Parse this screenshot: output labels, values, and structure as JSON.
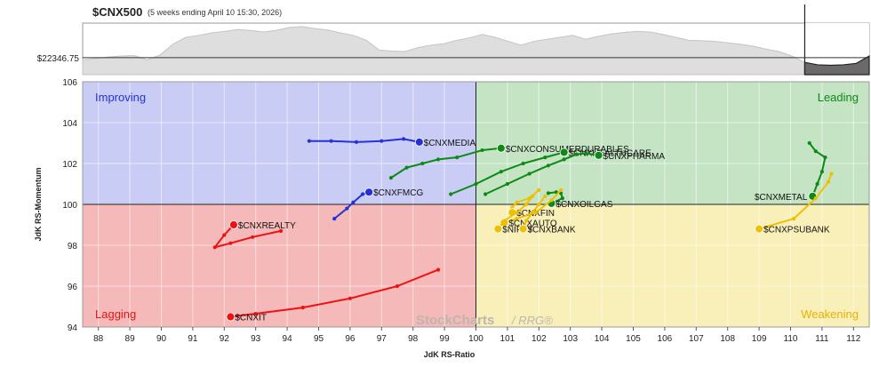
{
  "header": {
    "symbol": "$CNX500",
    "subtitle": "(5 weeks ending April 10 15:30, 2026)",
    "price_label": "$22346.75"
  },
  "watermark": {
    "brand": "StockCharts",
    "tool": "/ RRG®"
  },
  "colors": {
    "improving": "#c9cdf5",
    "leading": "#c4e4c4",
    "lagging": "#f6b9b9",
    "weakening": "#f8f0b8",
    "blue": "#2432d6",
    "green": "#0d8a16",
    "red": "#ee1111",
    "yellow": "#f0c000"
  },
  "chart_data": [
    {
      "type": "area",
      "series": [
        {
          "name": "$CNX500",
          "values": [
            22300,
            22330,
            22360,
            22380,
            22390,
            22300,
            22400,
            22620,
            22760,
            22800,
            22850,
            22880,
            22920,
            22900,
            22870,
            22900,
            22960,
            22980,
            22940,
            22910,
            22850,
            22800,
            22700,
            22500,
            22480,
            22470,
            22550,
            22600,
            22630,
            22700,
            22750,
            22820,
            22760,
            22680,
            22600,
            22680,
            22720,
            22760,
            22800,
            22720,
            22780,
            22830,
            22860,
            22880,
            22870,
            22820,
            22760,
            22700,
            22690,
            22680,
            22650,
            22620,
            22580,
            22520,
            22470,
            22380,
            22250,
            22200,
            22190,
            22200,
            22230,
            22380
          ]
        }
      ],
      "reference_value": 22346.75,
      "highlight_last": 5
    },
    {
      "type": "scatter",
      "title": "",
      "xlabel": "JdK RS-Ratio",
      "ylabel": "JdK RS-Momentum",
      "xlim": [
        87.5,
        112.5
      ],
      "ylim": [
        94,
        106
      ],
      "xticks": [
        88,
        89,
        90,
        91,
        92,
        93,
        94,
        95,
        96,
        97,
        98,
        99,
        100,
        101,
        102,
        103,
        104,
        105,
        106,
        107,
        108,
        109,
        110,
        111,
        112
      ],
      "yticks": [
        94,
        96,
        98,
        100,
        102,
        104,
        106
      ],
      "quadrants": {
        "top_left": "Improving",
        "top_right": "Leading",
        "bottom_left": "Lagging",
        "bottom_right": "Weakening"
      },
      "grid": true,
      "series": [
        {
          "name": "$CNXMEDIA",
          "color": "blue",
          "label_pos": "right",
          "points": [
            [
              94.7,
              103.1
            ],
            [
              95.4,
              103.1
            ],
            [
              96.2,
              103.05
            ],
            [
              97.0,
              103.1
            ],
            [
              97.7,
              103.2
            ],
            [
              98.2,
              103.05
            ]
          ]
        },
        {
          "name": "$CNXFMCG",
          "color": "blue",
          "label_pos": "right",
          "points": [
            [
              95.5,
              99.3
            ],
            [
              95.9,
              99.8
            ],
            [
              96.1,
              100.1
            ],
            [
              96.4,
              100.5
            ],
            [
              96.6,
              100.6
            ]
          ]
        },
        {
          "name": "$CNXCONSUMERDURABLES",
          "color": "green",
          "label_pos": "right",
          "points": [
            [
              97.3,
              101.3
            ],
            [
              97.8,
              101.8
            ],
            [
              98.3,
              102.0
            ],
            [
              98.8,
              102.2
            ],
            [
              99.4,
              102.3
            ],
            [
              100.2,
              102.65
            ],
            [
              100.8,
              102.75
            ]
          ]
        },
        {
          "name": "$CNXHEALTHCARE",
          "color": "green",
          "label_pos": "right",
          "points": [
            [
              99.2,
              100.5
            ],
            [
              100.0,
              101.0
            ],
            [
              100.8,
              101.6
            ],
            [
              101.5,
              102.0
            ],
            [
              102.2,
              102.3
            ],
            [
              102.8,
              102.55
            ]
          ]
        },
        {
          "name": "$CNXPHARMA",
          "color": "green",
          "label_pos": "right",
          "points": [
            [
              100.3,
              100.5
            ],
            [
              101.0,
              101.0
            ],
            [
              101.7,
              101.5
            ],
            [
              102.3,
              101.9
            ],
            [
              102.8,
              102.2
            ],
            [
              103.2,
              102.45
            ],
            [
              103.5,
              102.5
            ],
            [
              103.9,
              102.4
            ]
          ]
        },
        {
          "name": "$CNXOILGAS",
          "color": "green",
          "label_pos": "right",
          "points": [
            [
              102.3,
              100.55
            ],
            [
              102.55,
              100.6
            ],
            [
              102.7,
              100.55
            ],
            [
              102.75,
              100.3
            ],
            [
              102.4,
              100.05
            ]
          ]
        },
        {
          "name": "$CNXMETAL",
          "color": "green",
          "label_pos": "left",
          "points": [
            [
              110.6,
              103.0
            ],
            [
              110.8,
              102.6
            ],
            [
              111.1,
              102.3
            ],
            [
              111.0,
              101.6
            ],
            [
              110.85,
              101.0
            ],
            [
              110.7,
              100.4
            ]
          ]
        },
        {
          "name": "$CNXFIN",
          "color": "yellow",
          "label_pos": "right",
          "points": [
            [
              102.0,
              100.7
            ],
            [
              101.7,
              100.3
            ],
            [
              101.3,
              100.1
            ],
            [
              101.15,
              99.85
            ],
            [
              101.15,
              99.6
            ]
          ]
        },
        {
          "name": "$CNXAUTO",
          "color": "yellow",
          "label_pos": "right",
          "points": [
            [
              102.7,
              100.7
            ],
            [
              102.4,
              100.2
            ],
            [
              101.9,
              99.6
            ],
            [
              101.3,
              99.3
            ],
            [
              100.9,
              99.1
            ]
          ]
        },
        {
          "name": "$NIFTY",
          "color": "yellow",
          "label_pos": "right",
          "points": [
            [
              101.8,
              100.4
            ],
            [
              101.6,
              100.0
            ],
            [
              101.3,
              99.6
            ],
            [
              100.9,
              99.2
            ],
            [
              100.7,
              98.8
            ]
          ]
        },
        {
          "name": "$CNXBANK",
          "color": "yellow",
          "label_pos": "right",
          "points": [
            [
              102.2,
              100.4
            ],
            [
              102.0,
              100.0
            ],
            [
              101.8,
              99.6
            ],
            [
              101.6,
              99.2
            ],
            [
              101.5,
              98.8
            ]
          ]
        },
        {
          "name": "$CNXPSUBANK",
          "color": "yellow",
          "label_pos": "right",
          "points": [
            [
              111.3,
              101.5
            ],
            [
              111.2,
              101.1
            ],
            [
              110.8,
              100.3
            ],
            [
              110.1,
              99.3
            ],
            [
              109.0,
              98.8
            ]
          ]
        },
        {
          "name": "$CNXREALTY",
          "color": "red",
          "label_pos": "right",
          "points": [
            [
              93.8,
              98.7
            ],
            [
              92.9,
              98.4
            ],
            [
              92.2,
              98.1
            ],
            [
              91.7,
              97.9
            ],
            [
              92.0,
              98.5
            ],
            [
              92.3,
              99.0
            ]
          ]
        },
        {
          "name": "$CNXIT",
          "color": "red",
          "label_pos": "right",
          "points": [
            [
              98.8,
              96.8
            ],
            [
              97.5,
              96.0
            ],
            [
              96.0,
              95.4
            ],
            [
              94.5,
              94.95
            ],
            [
              93.0,
              94.65
            ],
            [
              92.2,
              94.5
            ]
          ]
        }
      ]
    }
  ]
}
